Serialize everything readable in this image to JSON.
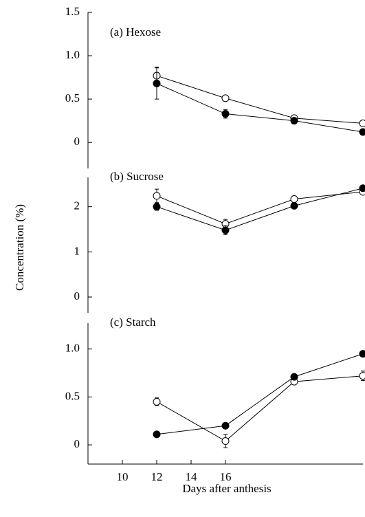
{
  "chart_data": [
    {
      "type": "line",
      "title": "(a) Hexose",
      "x": [
        12,
        16,
        20,
        24
      ],
      "xlim": [
        8,
        24
      ],
      "ylim": [
        -0.3,
        1.5
      ],
      "yticks": [
        0,
        0.5,
        {
          "value": 1,
          "label": "1.0"
        },
        1.5
      ],
      "series": [
        {
          "color": "#ffffff",
          "values": [
            0.77,
            0.51,
            0.28,
            0.22
          ],
          "errors": [
            0.1,
            null,
            null,
            null
          ]
        },
        {
          "color": "#000000",
          "values": [
            0.68,
            0.33,
            0.25,
            0.12
          ],
          "errors": [
            0.18,
            0.05,
            null,
            null
          ]
        }
      ]
    },
    {
      "type": "line",
      "title": "(b) Sucrose",
      "ylabel": "Concentration   (%)",
      "x": [
        12,
        16,
        20,
        24
      ],
      "xlim": [
        8,
        24
      ],
      "ylim": [
        -0.35,
        2.65
      ],
      "yticks": [
        0,
        1,
        2
      ],
      "series": [
        {
          "color": "#ffffff",
          "values": [
            2.24,
            1.62,
            2.17,
            2.33
          ],
          "errors": [
            0.15,
            0.1,
            null,
            null
          ]
        },
        {
          "color": "#000000",
          "values": [
            2.0,
            1.48,
            2.02,
            2.41
          ],
          "errors": [
            0.08,
            0.1,
            null,
            null
          ]
        }
      ]
    },
    {
      "type": "line",
      "title": "(c) Starch",
      "xlabel": "Days after anthesis",
      "x": [
        12,
        16,
        20,
        24
      ],
      "xlim": [
        8,
        24
      ],
      "xticks": [
        10,
        12,
        14,
        16
      ],
      "ylim": [
        -0.2,
        1.27
      ],
      "yticks": [
        0,
        0.5,
        {
          "value": 1,
          "label": "1.0"
        }
      ],
      "series": [
        {
          "color": "#ffffff",
          "values": [
            0.45,
            0.04,
            0.66,
            0.72
          ],
          "errors": [
            0.04,
            0.07,
            null,
            0.05
          ]
        },
        {
          "color": "#000000",
          "values": [
            0.11,
            0.2,
            0.71,
            0.95
          ],
          "errors": [
            null,
            null,
            null,
            null
          ]
        }
      ]
    }
  ]
}
